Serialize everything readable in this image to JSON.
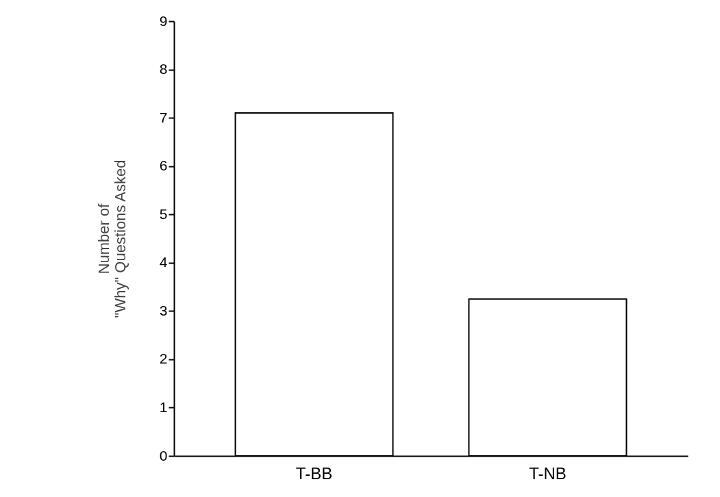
{
  "chart_data": {
    "type": "bar",
    "ylabel": "Number of\n\"Why\" Questions Asked",
    "categories": [
      "T-BB",
      "T-NB"
    ],
    "values": [
      7.1,
      3.25
    ],
    "color": "#ffffff",
    "ylim": [
      0,
      9
    ],
    "yticks": [
      0,
      1,
      2,
      3,
      4,
      5,
      6,
      7,
      8,
      9
    ],
    "grid": false
  }
}
